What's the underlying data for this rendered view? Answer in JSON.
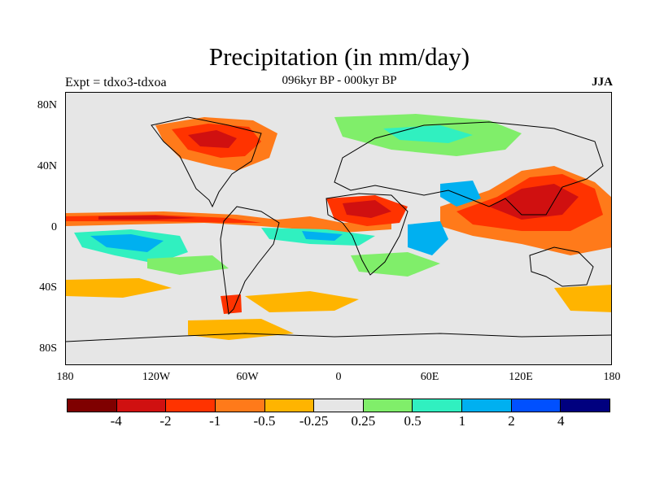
{
  "title": "Precipitation (in mm/day)",
  "subtitle": "096kyr BP - 000kyr BP",
  "left_label": "Expt = tdxo3-tdxoa",
  "right_label": "JJA",
  "y_ticks": [
    "80N",
    "40N",
    "0",
    "40S",
    "80S"
  ],
  "x_ticks": [
    "180",
    "120W",
    "60W",
    "0",
    "60E",
    "120E",
    "180"
  ],
  "colorbar": {
    "colors": [
      "#7f0000",
      "#d01010",
      "#ff3300",
      "#ff7a1a",
      "#ffb400",
      "#e6e6e6",
      "#80ee6a",
      "#30f0c0",
      "#00b0f0",
      "#0050ff",
      "#00007f"
    ],
    "labels": [
      "-4",
      "-2",
      "-1",
      "-0.5",
      "-0.25",
      "0.25",
      "0.5",
      "1",
      "2",
      "4"
    ]
  },
  "chart_data": {
    "type": "heatmap",
    "title": "Precipitation (in mm/day)",
    "subtitle": "096kyr BP - 000kyr BP",
    "xlabel": "",
    "ylabel": "",
    "xlim": [
      -180,
      180
    ],
    "ylim": [
      -90,
      90
    ],
    "levels": [
      -4,
      -2,
      -1,
      -0.5,
      -0.25,
      0.25,
      0.5,
      1,
      2,
      4
    ]
  }
}
